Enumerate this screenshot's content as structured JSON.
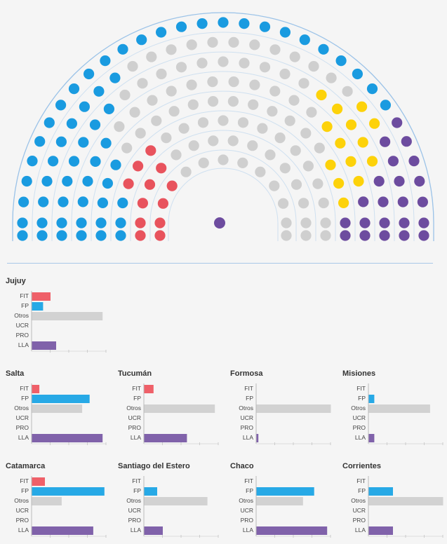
{
  "chart_data": [
    {
      "type": "parliament",
      "seat_colors": {
        "FIT": "#e8535d",
        "FP": "#1a9be0",
        "Otros": "#cfcfcf",
        "UCR": "#cfcfcf",
        "PRO": "#cfcfcf",
        "LLA": "#6d4c9f",
        "Amarillo": "#fdd20a"
      },
      "president_color": "#6d4c9f",
      "note": "semicircle of seats by bloc"
    },
    {
      "type": "bar",
      "orientation": "horizontal",
      "panels": [
        {
          "name": "Jujuy",
          "categories": [
            "FIT",
            "FP",
            "Otros",
            "UCR",
            "PRO",
            "LLA"
          ],
          "values": [
            1,
            0.6,
            3.8,
            0,
            0,
            1.3
          ]
        },
        {
          "name": "Salta",
          "categories": [
            "FIT",
            "FP",
            "Otros",
            "UCR",
            "PRO",
            "LLA"
          ],
          "values": [
            0.4,
            3.1,
            2.7,
            0,
            0,
            3.8
          ]
        },
        {
          "name": "Tucumán",
          "categories": [
            "FIT",
            "FP",
            "Otros",
            "UCR",
            "PRO",
            "LLA"
          ],
          "values": [
            0.5,
            0,
            3.8,
            0,
            0,
            2.3
          ]
        },
        {
          "name": "Formosa",
          "categories": [
            "FIT",
            "FP",
            "Otros",
            "UCR",
            "PRO",
            "LLA"
          ],
          "values": [
            0,
            0,
            4.0,
            0,
            0,
            0.1
          ]
        },
        {
          "name": "Misiones",
          "categories": [
            "FIT",
            "FP",
            "Otros",
            "UCR",
            "PRO",
            "LLA"
          ],
          "values": [
            0,
            0.3,
            3.3,
            0,
            0,
            0.3
          ]
        },
        {
          "name": "Catamarca",
          "categories": [
            "FIT",
            "FP",
            "Otros",
            "UCR",
            "PRO",
            "LLA"
          ],
          "values": [
            0.7,
            3.9,
            1.6,
            0,
            0,
            3.3
          ]
        },
        {
          "name": "Santiago del Estero",
          "categories": [
            "FIT",
            "FP",
            "Otros",
            "UCR",
            "PRO",
            "LLA"
          ],
          "values": [
            0,
            0.7,
            3.4,
            0,
            0,
            1.0
          ]
        },
        {
          "name": "Chaco",
          "categories": [
            "FIT",
            "FP",
            "Otros",
            "UCR",
            "PRO",
            "LLA"
          ],
          "values": [
            0,
            3.1,
            2.5,
            0,
            0,
            3.8
          ]
        },
        {
          "name": "Corrientes",
          "categories": [
            "FIT",
            "FP",
            "Otros",
            "UCR",
            "PRO",
            "LLA"
          ],
          "values": [
            0,
            1.3,
            4.0,
            0,
            0,
            1.3
          ]
        }
      ],
      "xlim": [
        0,
        4
      ],
      "colors": {
        "FIT": "#ef6069",
        "FP": "#27a9e6",
        "Otros": "#d2d2d2",
        "UCR": "#d2d2d2",
        "PRO": "#d2d2d2",
        "LLA": "#8062aa"
      }
    }
  ]
}
